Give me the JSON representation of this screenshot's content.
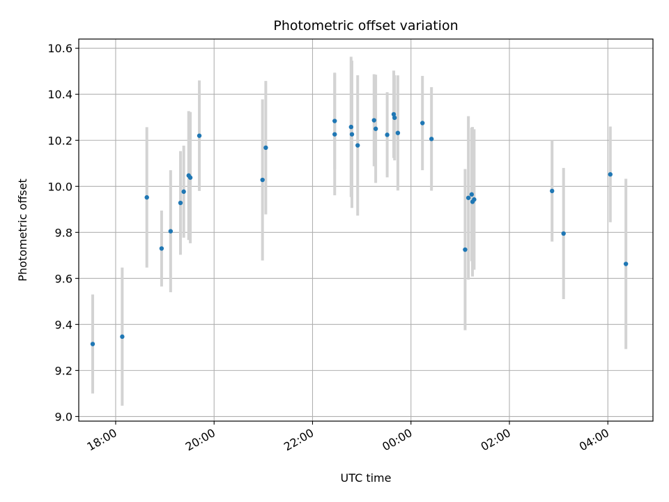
{
  "chart_data": {
    "type": "scatter",
    "title": "Photometric offset variation",
    "xlabel": "UTC time",
    "ylabel": "Photometric offset",
    "x_is_time": true,
    "xlim": [
      "17:15",
      "04:55"
    ],
    "ylim": [
      8.98,
      10.64
    ],
    "x_ticks": [
      "18:00",
      "20:00",
      "22:00",
      "00:00",
      "02:00",
      "04:00"
    ],
    "y_ticks": [
      "9.0",
      "9.2",
      "9.4",
      "9.6",
      "9.8",
      "10.0",
      "10.2",
      "10.4",
      "10.6"
    ],
    "grid": true,
    "marker_color": "#1f77b4",
    "errorbar_color": "#d3d3d3",
    "series": [
      {
        "points": [
          {
            "x": "17:32",
            "y": 9.315,
            "yerr": 0.215
          },
          {
            "x": "18:08",
            "y": 9.347,
            "yerr": 0.3
          },
          {
            "x": "18:38",
            "y": 9.952,
            "yerr": 0.305
          },
          {
            "x": "18:56",
            "y": 9.73,
            "yerr": 0.165
          },
          {
            "x": "19:07",
            "y": 9.805,
            "yerr": 0.265
          },
          {
            "x": "19:19",
            "y": 9.928,
            "yerr": 0.225
          },
          {
            "x": "19:23",
            "y": 9.977,
            "yerr": 0.2
          },
          {
            "x": "19:29",
            "y": 10.047,
            "yerr": 0.28
          },
          {
            "x": "19:31",
            "y": 10.038,
            "yerr": 0.285
          },
          {
            "x": "19:42",
            "y": 10.22,
            "yerr": 0.24
          },
          {
            "x": "20:59",
            "y": 10.028,
            "yerr": 0.35
          },
          {
            "x": "21:03",
            "y": 10.168,
            "yerr": 0.29
          },
          {
            "x": "22:27",
            "y": 10.284,
            "yerr": 0.21
          },
          {
            "x": "22:27",
            "y": 10.226,
            "yerr": 0.265
          },
          {
            "x": "22:47",
            "y": 10.258,
            "yerr": 0.305
          },
          {
            "x": "22:48",
            "y": 10.226,
            "yerr": 0.32
          },
          {
            "x": "22:55",
            "y": 10.178,
            "yerr": 0.305
          },
          {
            "x": "23:15",
            "y": 10.287,
            "yerr": 0.2
          },
          {
            "x": "23:17",
            "y": 10.25,
            "yerr": 0.235
          },
          {
            "x": "23:31",
            "y": 10.224,
            "yerr": 0.185
          },
          {
            "x": "23:39",
            "y": 10.313,
            "yerr": 0.19
          },
          {
            "x": "23:40",
            "y": 10.298,
            "yerr": 0.185
          },
          {
            "x": "23:44",
            "y": 10.232,
            "yerr": 0.25
          },
          {
            "x": "00:14",
            "y": 10.275,
            "yerr": 0.205
          },
          {
            "x": "00:25",
            "y": 10.206,
            "yerr": 0.225
          },
          {
            "x": "01:06",
            "y": 9.725,
            "yerr": 0.35
          },
          {
            "x": "01:10",
            "y": 9.95,
            "yerr": 0.355
          },
          {
            "x": "01:14",
            "y": 9.965,
            "yerr": 0.29
          },
          {
            "x": "01:15",
            "y": 9.933,
            "yerr": 0.325
          },
          {
            "x": "01:17",
            "y": 9.943,
            "yerr": 0.305
          },
          {
            "x": "02:52",
            "y": 9.98,
            "yerr": 0.22
          },
          {
            "x": "03:06",
            "y": 9.795,
            "yerr": 0.285
          },
          {
            "x": "04:03",
            "y": 10.052,
            "yerr": 0.208
          },
          {
            "x": "04:22",
            "y": 9.663,
            "yerr": 0.37
          }
        ]
      }
    ]
  }
}
